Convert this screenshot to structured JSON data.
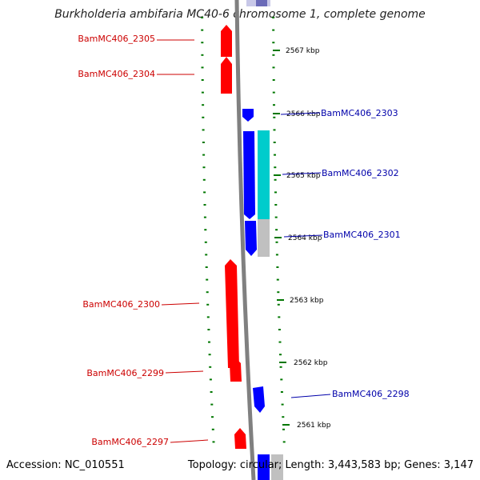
{
  "title": "Burkholderia ambifaria MC40-6 chromosome 1, complete genome",
  "accession_text": "Accession: NC_010551",
  "topology_text": "Topology: circular; Length: 3,443,583 bp; Genes: 3,147",
  "colors": {
    "forward_gene": "#ff0000",
    "reverse_gene": "#0000ff",
    "cyan_feature": "#00cccc",
    "gray_feature": "#c0c0c0",
    "tick": "#007700",
    "backbone": "#808080",
    "forward_label": "#cc0000",
    "reverse_label": "#0000aa"
  },
  "kbp_labels": [
    "2567 kbp",
    "2566 kbp",
    "2565 kbp",
    "2564 kbp",
    "2563 kbp",
    "2562 kbp",
    "2561 kbp"
  ],
  "forward_genes": [
    "BamMC406_2305",
    "BamMC406_2304",
    "BamMC406_2300",
    "BamMC406_2299",
    "BamMC406_2297"
  ],
  "reverse_genes": [
    "BamMC406_2303",
    "BamMC406_2302",
    "BamMC406_2301",
    "BamMC406_2298"
  ]
}
